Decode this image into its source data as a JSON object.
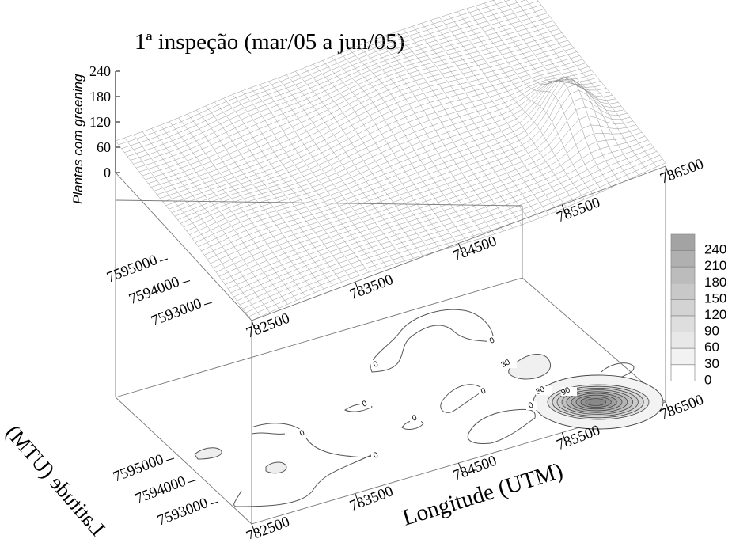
{
  "chart_data": {
    "type": "surface-3d-with-contour",
    "title": "1ª inspeção (mar/05 a jun/05)",
    "xlabel": "Longitude (UTM)",
    "ylabel": "Latitude (UTM)",
    "zlabel": "Plantas com greening",
    "x_ticks": [
      "782500",
      "783500",
      "784500",
      "785500",
      "786500"
    ],
    "y_ticks": [
      "7593000",
      "7594000",
      "7595000"
    ],
    "z_ticks": [
      "0",
      "60",
      "120",
      "180",
      "240"
    ],
    "zlim": [
      0,
      240
    ],
    "legend": {
      "placement": "right",
      "levels": [
        "240",
        "210",
        "180",
        "150",
        "120",
        "90",
        "60",
        "30",
        "0"
      ],
      "colors": [
        "#a3a3a3",
        "#b0b0b0",
        "#bcbcbc",
        "#c8c8c8",
        "#d3d3d3",
        "#dedede",
        "#e8e8e8",
        "#f2f2f2",
        "#ffffff"
      ]
    },
    "contour_labels": [
      "0",
      "0",
      "0",
      "0",
      "0",
      "0",
      "0",
      "0",
      "30",
      "30",
      "90"
    ]
  }
}
